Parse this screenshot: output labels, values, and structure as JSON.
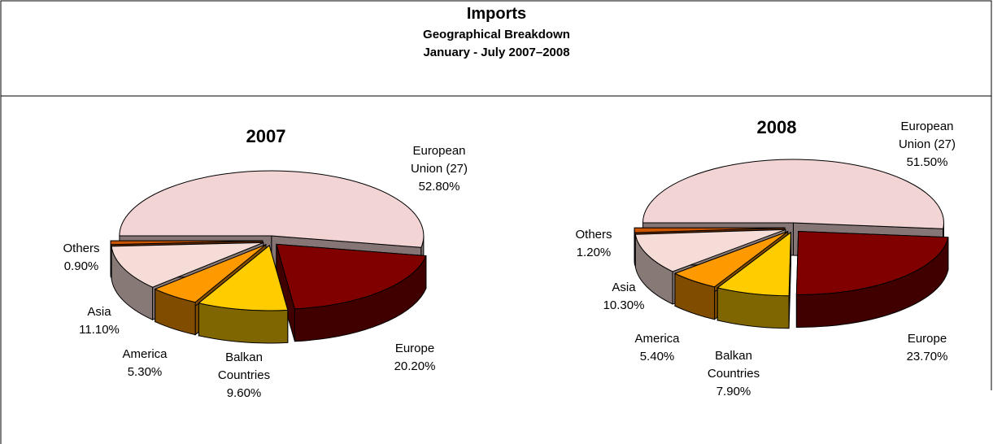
{
  "header": {
    "title": "Imports",
    "subtitle": "Geographical Breakdown",
    "period": "January - July 2007–2008"
  },
  "chart_data": [
    {
      "type": "pie",
      "title": "2007",
      "categories": [
        "European Union (27)",
        "Europe",
        "Balkan Countries",
        "America",
        "Asia",
        "Others"
      ],
      "values": [
        52.8,
        20.2,
        9.6,
        5.3,
        11.1,
        0.9
      ],
      "value_labels": [
        "52.80%",
        "20.20%",
        "9.60%",
        "5.30%",
        "11.10%",
        "0.90%"
      ],
      "colors": [
        "#f2d4d4",
        "#800000",
        "#ffcc00",
        "#ff9900",
        "#f5dcd6",
        "#cc5500"
      ]
    },
    {
      "type": "pie",
      "title": "2008",
      "categories": [
        "European Union (27)",
        "Europe",
        "Balkan Countries",
        "America",
        "Asia",
        "Others"
      ],
      "values": [
        51.5,
        23.7,
        7.9,
        5.4,
        10.3,
        1.2
      ],
      "value_labels": [
        "51.50%",
        "23.70%",
        "7.90%",
        "5.40%",
        "10.30%",
        "1.20%"
      ],
      "colors": [
        "#f2d4d4",
        "#800000",
        "#ffcc00",
        "#ff9900",
        "#f5dcd6",
        "#cc5500"
      ]
    }
  ]
}
